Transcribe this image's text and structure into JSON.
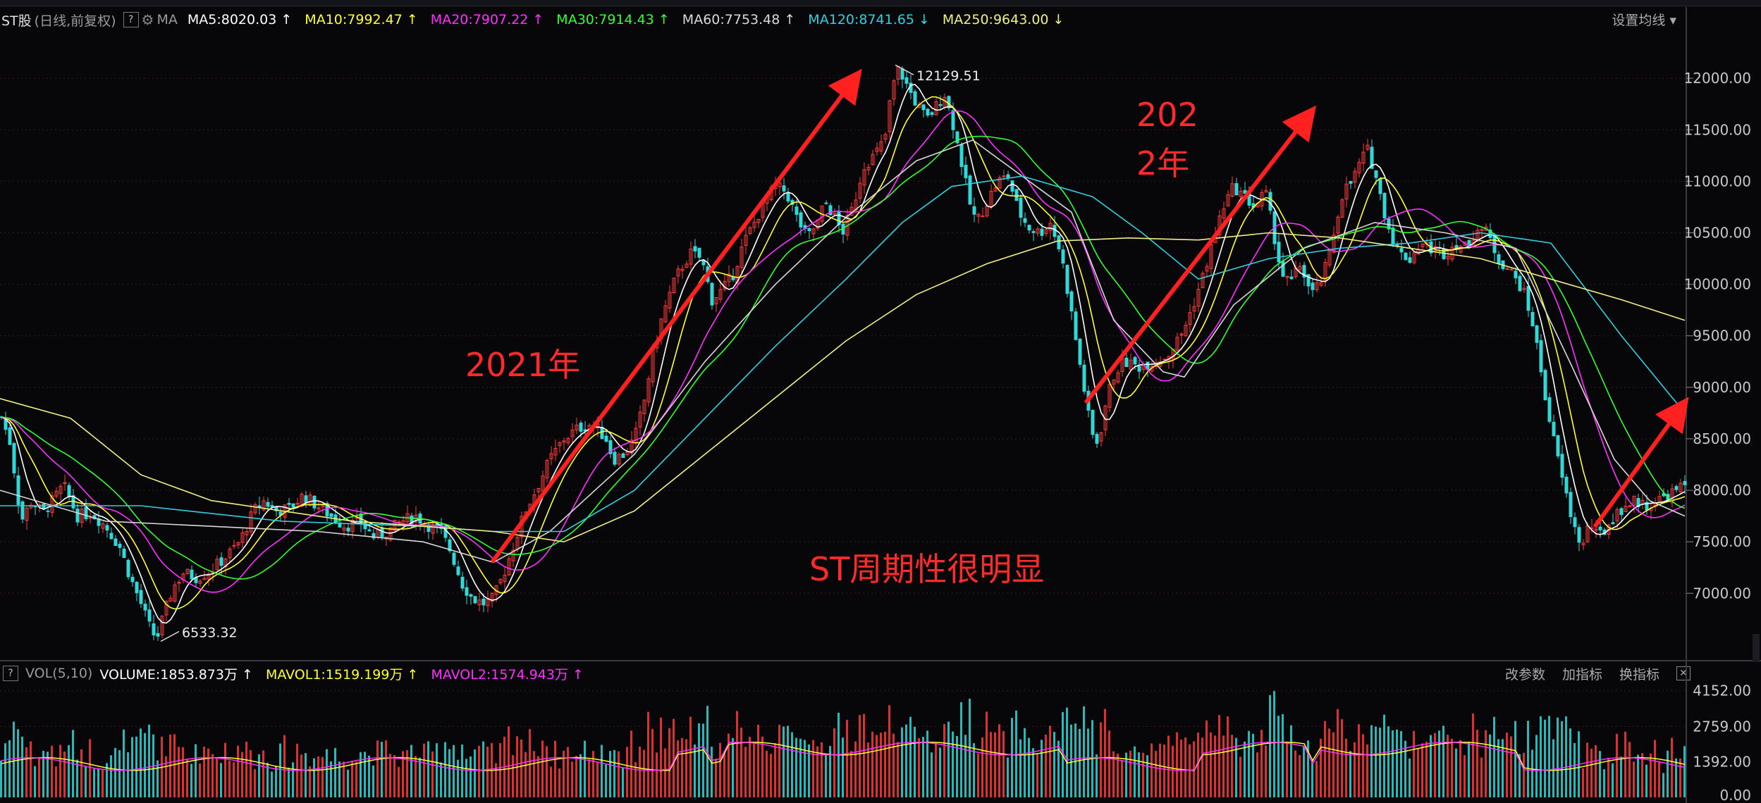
{
  "header": {
    "stock_name": "ST股",
    "period": "(日线,前复权)",
    "help": "?",
    "ma_label": "MA",
    "ma_items": [
      {
        "label": "MA5:8020.03",
        "arrow": "↑",
        "color": "#ffffff"
      },
      {
        "label": "MA10:7992.47",
        "arrow": "↑",
        "color": "#ffff30"
      },
      {
        "label": "MA20:7907.22",
        "arrow": "↑",
        "color": "#ff30ff"
      },
      {
        "label": "MA30:7914.43",
        "arrow": "↑",
        "color": "#30ff30"
      },
      {
        "label": "MA60:7753.48",
        "arrow": "↑",
        "color": "#d8d8d8"
      },
      {
        "label": "MA120:8741.65",
        "arrow": "↓",
        "color": "#30d0e0"
      },
      {
        "label": "MA250:9643.00",
        "arrow": "↓",
        "color": "#f0f080"
      }
    ],
    "settings_label": "设置均线 ▾"
  },
  "volume_header": {
    "help": "?",
    "vol_label": "VOL(5,10)",
    "items": [
      {
        "label": "VOLUME:1853.873万",
        "arrow": "↑",
        "color": "#ffffff"
      },
      {
        "label": "MAVOL1:1519.199万",
        "arrow": "↑",
        "color": "#ffff30"
      },
      {
        "label": "MAVOL2:1574.943万",
        "arrow": "↑",
        "color": "#ff30ff"
      }
    ],
    "buttons": [
      "改参数",
      "加指标",
      "换指标"
    ],
    "close": "✕"
  },
  "annotations": {
    "a2021": "2021年",
    "a2022_line1": "202",
    "a2022_line2": "2年",
    "summary": "ST周期性很明显"
  },
  "colors": {
    "up": "#ff3a3a",
    "down": "#30d8d8",
    "axis_text": "#c8c8c8",
    "grid": "#3a1818",
    "arrow": "#ff2020"
  },
  "chart_data": {
    "type": "candlestick",
    "price_axis": {
      "ticks": [
        12000,
        11500,
        11000,
        10500,
        10000,
        9500,
        9000,
        8500,
        8000,
        7500,
        7000
      ],
      "tick_labels": [
        "12000.00",
        "11500.00",
        "11000.00",
        "10500.00",
        "10000.00",
        "9500.00",
        "9000.00",
        "8500.00",
        "8000.00",
        "7500.00",
        "7000.00"
      ],
      "ylim": [
        6400,
        12350
      ]
    },
    "volume_axis": {
      "tick_labels": [
        "4152.00",
        "2759.00",
        "1392.00",
        "0.00"
      ],
      "ticks": [
        4152,
        2759,
        1392,
        0
      ],
      "ylim": [
        0,
        4500
      ]
    },
    "marked_high": "12129.51",
    "marked_low": "6533.32",
    "close_path": [
      [
        0,
        8750
      ],
      [
        15,
        8450
      ],
      [
        30,
        7700
      ],
      [
        45,
        7900
      ],
      [
        60,
        7780
      ],
      [
        75,
        7900
      ],
      [
        90,
        8050
      ],
      [
        110,
        7750
      ],
      [
        130,
        7780
      ],
      [
        150,
        7650
      ],
      [
        170,
        7450
      ],
      [
        185,
        7150
      ],
      [
        200,
        6900
      ],
      [
        212,
        6680
      ],
      [
        222,
        6550
      ],
      [
        232,
        6780
      ],
      [
        245,
        7050
      ],
      [
        260,
        7200
      ],
      [
        280,
        7150
      ],
      [
        300,
        7230
      ],
      [
        320,
        7350
      ],
      [
        340,
        7500
      ],
      [
        360,
        7800
      ],
      [
        375,
        7900
      ],
      [
        390,
        7800
      ],
      [
        410,
        7820
      ],
      [
        430,
        7950
      ],
      [
        450,
        7850
      ],
      [
        470,
        7750
      ],
      [
        490,
        7650
      ],
      [
        510,
        7700
      ],
      [
        530,
        7550
      ],
      [
        550,
        7600
      ],
      [
        570,
        7700
      ],
      [
        590,
        7750
      ],
      [
        610,
        7650
      ],
      [
        625,
        7600
      ],
      [
        640,
        7400
      ],
      [
        655,
        7100
      ],
      [
        670,
        6950
      ],
      [
        685,
        6900
      ],
      [
        700,
        6950
      ],
      [
        715,
        7200
      ],
      [
        730,
        7500
      ],
      [
        745,
        7800
      ],
      [
        760,
        8000
      ],
      [
        780,
        8300
      ],
      [
        800,
        8500
      ],
      [
        820,
        8600
      ],
      [
        840,
        8650
      ],
      [
        860,
        8500
      ],
      [
        870,
        8300
      ],
      [
        885,
        8350
      ],
      [
        900,
        8500
      ],
      [
        915,
        8900
      ],
      [
        925,
        9300
      ],
      [
        940,
        9700
      ],
      [
        955,
        10000
      ],
      [
        965,
        10150
      ],
      [
        980,
        10300
      ],
      [
        995,
        10250
      ],
      [
        1010,
        9850
      ],
      [
        1025,
        9950
      ],
      [
        1040,
        10100
      ],
      [
        1055,
        10400
      ],
      [
        1070,
        10600
      ],
      [
        1085,
        10800
      ],
      [
        1100,
        10950
      ],
      [
        1115,
        10900
      ],
      [
        1130,
        10650
      ],
      [
        1145,
        10450
      ],
      [
        1160,
        10600
      ],
      [
        1170,
        10800
      ],
      [
        1180,
        10700
      ],
      [
        1195,
        10500
      ],
      [
        1210,
        10750
      ],
      [
        1225,
        11150
      ],
      [
        1240,
        11250
      ],
      [
        1255,
        11400
      ],
      [
        1265,
        11900
      ],
      [
        1275,
        12100
      ],
      [
        1285,
        11950
      ],
      [
        1300,
        11750
      ],
      [
        1315,
        11600
      ],
      [
        1330,
        11750
      ],
      [
        1340,
        11850
      ],
      [
        1352,
        11550
      ],
      [
        1365,
        11150
      ],
      [
        1375,
        10800
      ],
      [
        1385,
        10600
      ],
      [
        1400,
        10800
      ],
      [
        1415,
        11000
      ],
      [
        1430,
        11050
      ],
      [
        1445,
        10700
      ],
      [
        1460,
        10550
      ],
      [
        1475,
        10500
      ],
      [
        1490,
        10600
      ],
      [
        1505,
        10300
      ],
      [
        1518,
        9800
      ],
      [
        1530,
        9300
      ],
      [
        1540,
        8900
      ],
      [
        1548,
        8550
      ],
      [
        1558,
        8450
      ],
      [
        1570,
        8900
      ],
      [
        1582,
        9150
      ],
      [
        1595,
        9250
      ],
      [
        1615,
        9200
      ],
      [
        1635,
        9250
      ],
      [
        1655,
        9300
      ],
      [
        1675,
        9500
      ],
      [
        1690,
        9750
      ],
      [
        1705,
        10050
      ],
      [
        1720,
        10400
      ],
      [
        1735,
        10750
      ],
      [
        1750,
        10950
      ],
      [
        1765,
        10850
      ],
      [
        1780,
        10750
      ],
      [
        1795,
        10900
      ],
      [
        1808,
        10450
      ],
      [
        1818,
        10100
      ],
      [
        1830,
        10000
      ],
      [
        1845,
        10200
      ],
      [
        1860,
        9900
      ],
      [
        1872,
        10000
      ],
      [
        1885,
        10250
      ],
      [
        1895,
        10600
      ],
      [
        1905,
        10900
      ],
      [
        1918,
        11000
      ],
      [
        1930,
        11200
      ],
      [
        1940,
        11300
      ],
      [
        1950,
        11100
      ],
      [
        1960,
        10800
      ],
      [
        1972,
        10500
      ],
      [
        1985,
        10300
      ],
      [
        2000,
        10250
      ],
      [
        2015,
        10400
      ],
      [
        2030,
        10350
      ],
      [
        2050,
        10300
      ],
      [
        2065,
        10400
      ],
      [
        2080,
        10350
      ],
      [
        2095,
        10550
      ],
      [
        2110,
        10500
      ],
      [
        2125,
        10250
      ],
      [
        2140,
        10150
      ],
      [
        2160,
        9950
      ],
      [
        2175,
        9600
      ],
      [
        2185,
        9200
      ],
      [
        2195,
        8800
      ],
      [
        2205,
        8450
      ],
      [
        2215,
        8150
      ],
      [
        2225,
        7850
      ],
      [
        2235,
        7600
      ],
      [
        2245,
        7450
      ],
      [
        2255,
        7700
      ],
      [
        2265,
        7550
      ],
      [
        2275,
        7600
      ],
      [
        2290,
        7750
      ],
      [
        2305,
        7850
      ],
      [
        2320,
        7900
      ],
      [
        2335,
        7850
      ],
      [
        2350,
        7900
      ],
      [
        2365,
        7950
      ],
      [
        2380,
        8000
      ],
      [
        2390,
        8050
      ]
    ],
    "ma250_path": [
      [
        0,
        8890
      ],
      [
        100,
        8700
      ],
      [
        200,
        8150
      ],
      [
        300,
        7900
      ],
      [
        500,
        7700
      ],
      [
        700,
        7600
      ],
      [
        800,
        7500
      ],
      [
        900,
        7800
      ],
      [
        1000,
        8350
      ],
      [
        1100,
        8900
      ],
      [
        1200,
        9450
      ],
      [
        1300,
        9900
      ],
      [
        1400,
        10200
      ],
      [
        1500,
        10420
      ],
      [
        1600,
        10450
      ],
      [
        1700,
        10430
      ],
      [
        1800,
        10500
      ],
      [
        1900,
        10450
      ],
      [
        2000,
        10350
      ],
      [
        2100,
        10250
      ],
      [
        2200,
        10050
      ],
      [
        2300,
        9850
      ],
      [
        2390,
        9650
      ]
    ],
    "ma120_path": [
      [
        0,
        7850
      ],
      [
        200,
        7850
      ],
      [
        400,
        7700
      ],
      [
        600,
        7650
      ],
      [
        700,
        7600
      ],
      [
        800,
        7600
      ],
      [
        900,
        8000
      ],
      [
        1000,
        8700
      ],
      [
        1100,
        9400
      ],
      [
        1200,
        10050
      ],
      [
        1280,
        10600
      ],
      [
        1350,
        10950
      ],
      [
        1450,
        11050
      ],
      [
        1550,
        10850
      ],
      [
        1620,
        10500
      ],
      [
        1700,
        10050
      ],
      [
        1800,
        10250
      ],
      [
        1900,
        10350
      ],
      [
        2000,
        10400
      ],
      [
        2100,
        10500
      ],
      [
        2200,
        10400
      ],
      [
        2300,
        9500
      ],
      [
        2390,
        8750
      ]
    ],
    "ma60_path": [
      [
        0,
        8000
      ],
      [
        150,
        7700
      ],
      [
        300,
        7650
      ],
      [
        450,
        7600
      ],
      [
        600,
        7500
      ],
      [
        700,
        7300
      ],
      [
        780,
        7600
      ],
      [
        900,
        8350
      ],
      [
        1000,
        9250
      ],
      [
        1100,
        10000
      ],
      [
        1200,
        10650
      ],
      [
        1300,
        11200
      ],
      [
        1380,
        11400
      ],
      [
        1450,
        11050
      ],
      [
        1520,
        10700
      ],
      [
        1580,
        9650
      ],
      [
        1650,
        9150
      ],
      [
        1680,
        9100
      ],
      [
        1750,
        9800
      ],
      [
        1850,
        10350
      ],
      [
        1950,
        10600
      ],
      [
        2050,
        10500
      ],
      [
        2150,
        10350
      ],
      [
        2230,
        9200
      ],
      [
        2290,
        8300
      ],
      [
        2340,
        7900
      ],
      [
        2390,
        7750
      ]
    ]
  }
}
